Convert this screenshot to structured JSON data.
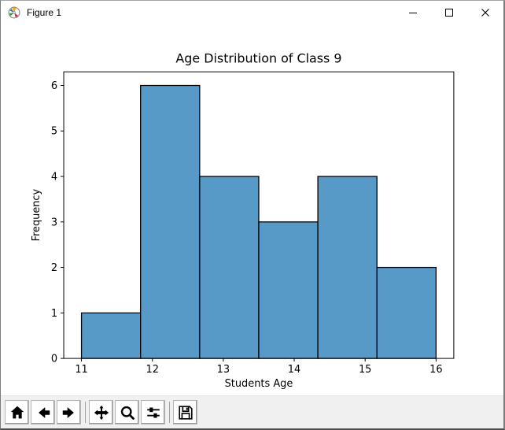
{
  "window": {
    "title": "Figure 1",
    "app_icon": "matplotlib-logo",
    "controls": [
      {
        "name": "minimize",
        "icon": "minimize-icon"
      },
      {
        "name": "maximize",
        "icon": "maximize-icon"
      },
      {
        "name": "close",
        "icon": "close-icon"
      }
    ]
  },
  "chart_data": {
    "type": "bar",
    "subtype": "histogram",
    "title": "Age Distribution of Class 9",
    "xlabel": "Students Age",
    "ylabel": "Frequency",
    "bin_start": 11,
    "bin_end": 16,
    "bin_edges": [
      11,
      11.8333,
      12.6667,
      13.5,
      14.3333,
      15.1667,
      16
    ],
    "counts": [
      1,
      6,
      4,
      3,
      4,
      2
    ],
    "xticks": [
      11,
      12,
      13,
      14,
      15,
      16
    ],
    "yticks": [
      0,
      1,
      2,
      3,
      4,
      5,
      6
    ],
    "xlim": [
      10.75,
      16.25
    ],
    "ylim": [
      0,
      6.3
    ],
    "grid": false,
    "legend": null,
    "bar_fill": "#5799c7",
    "bar_edge": "#000000"
  },
  "toolbar": {
    "items": [
      {
        "type": "button",
        "name": "home",
        "icon": "home-icon"
      },
      {
        "type": "button",
        "name": "back",
        "icon": "arrow-left-icon"
      },
      {
        "type": "button",
        "name": "forward",
        "icon": "arrow-right-icon"
      },
      {
        "type": "separator"
      },
      {
        "type": "button",
        "name": "pan",
        "icon": "move-icon"
      },
      {
        "type": "button",
        "name": "zoom",
        "icon": "magnifier-icon"
      },
      {
        "type": "button",
        "name": "configure-subplots",
        "icon": "sliders-icon"
      },
      {
        "type": "separator"
      },
      {
        "type": "button",
        "name": "save",
        "icon": "save-icon"
      }
    ]
  }
}
